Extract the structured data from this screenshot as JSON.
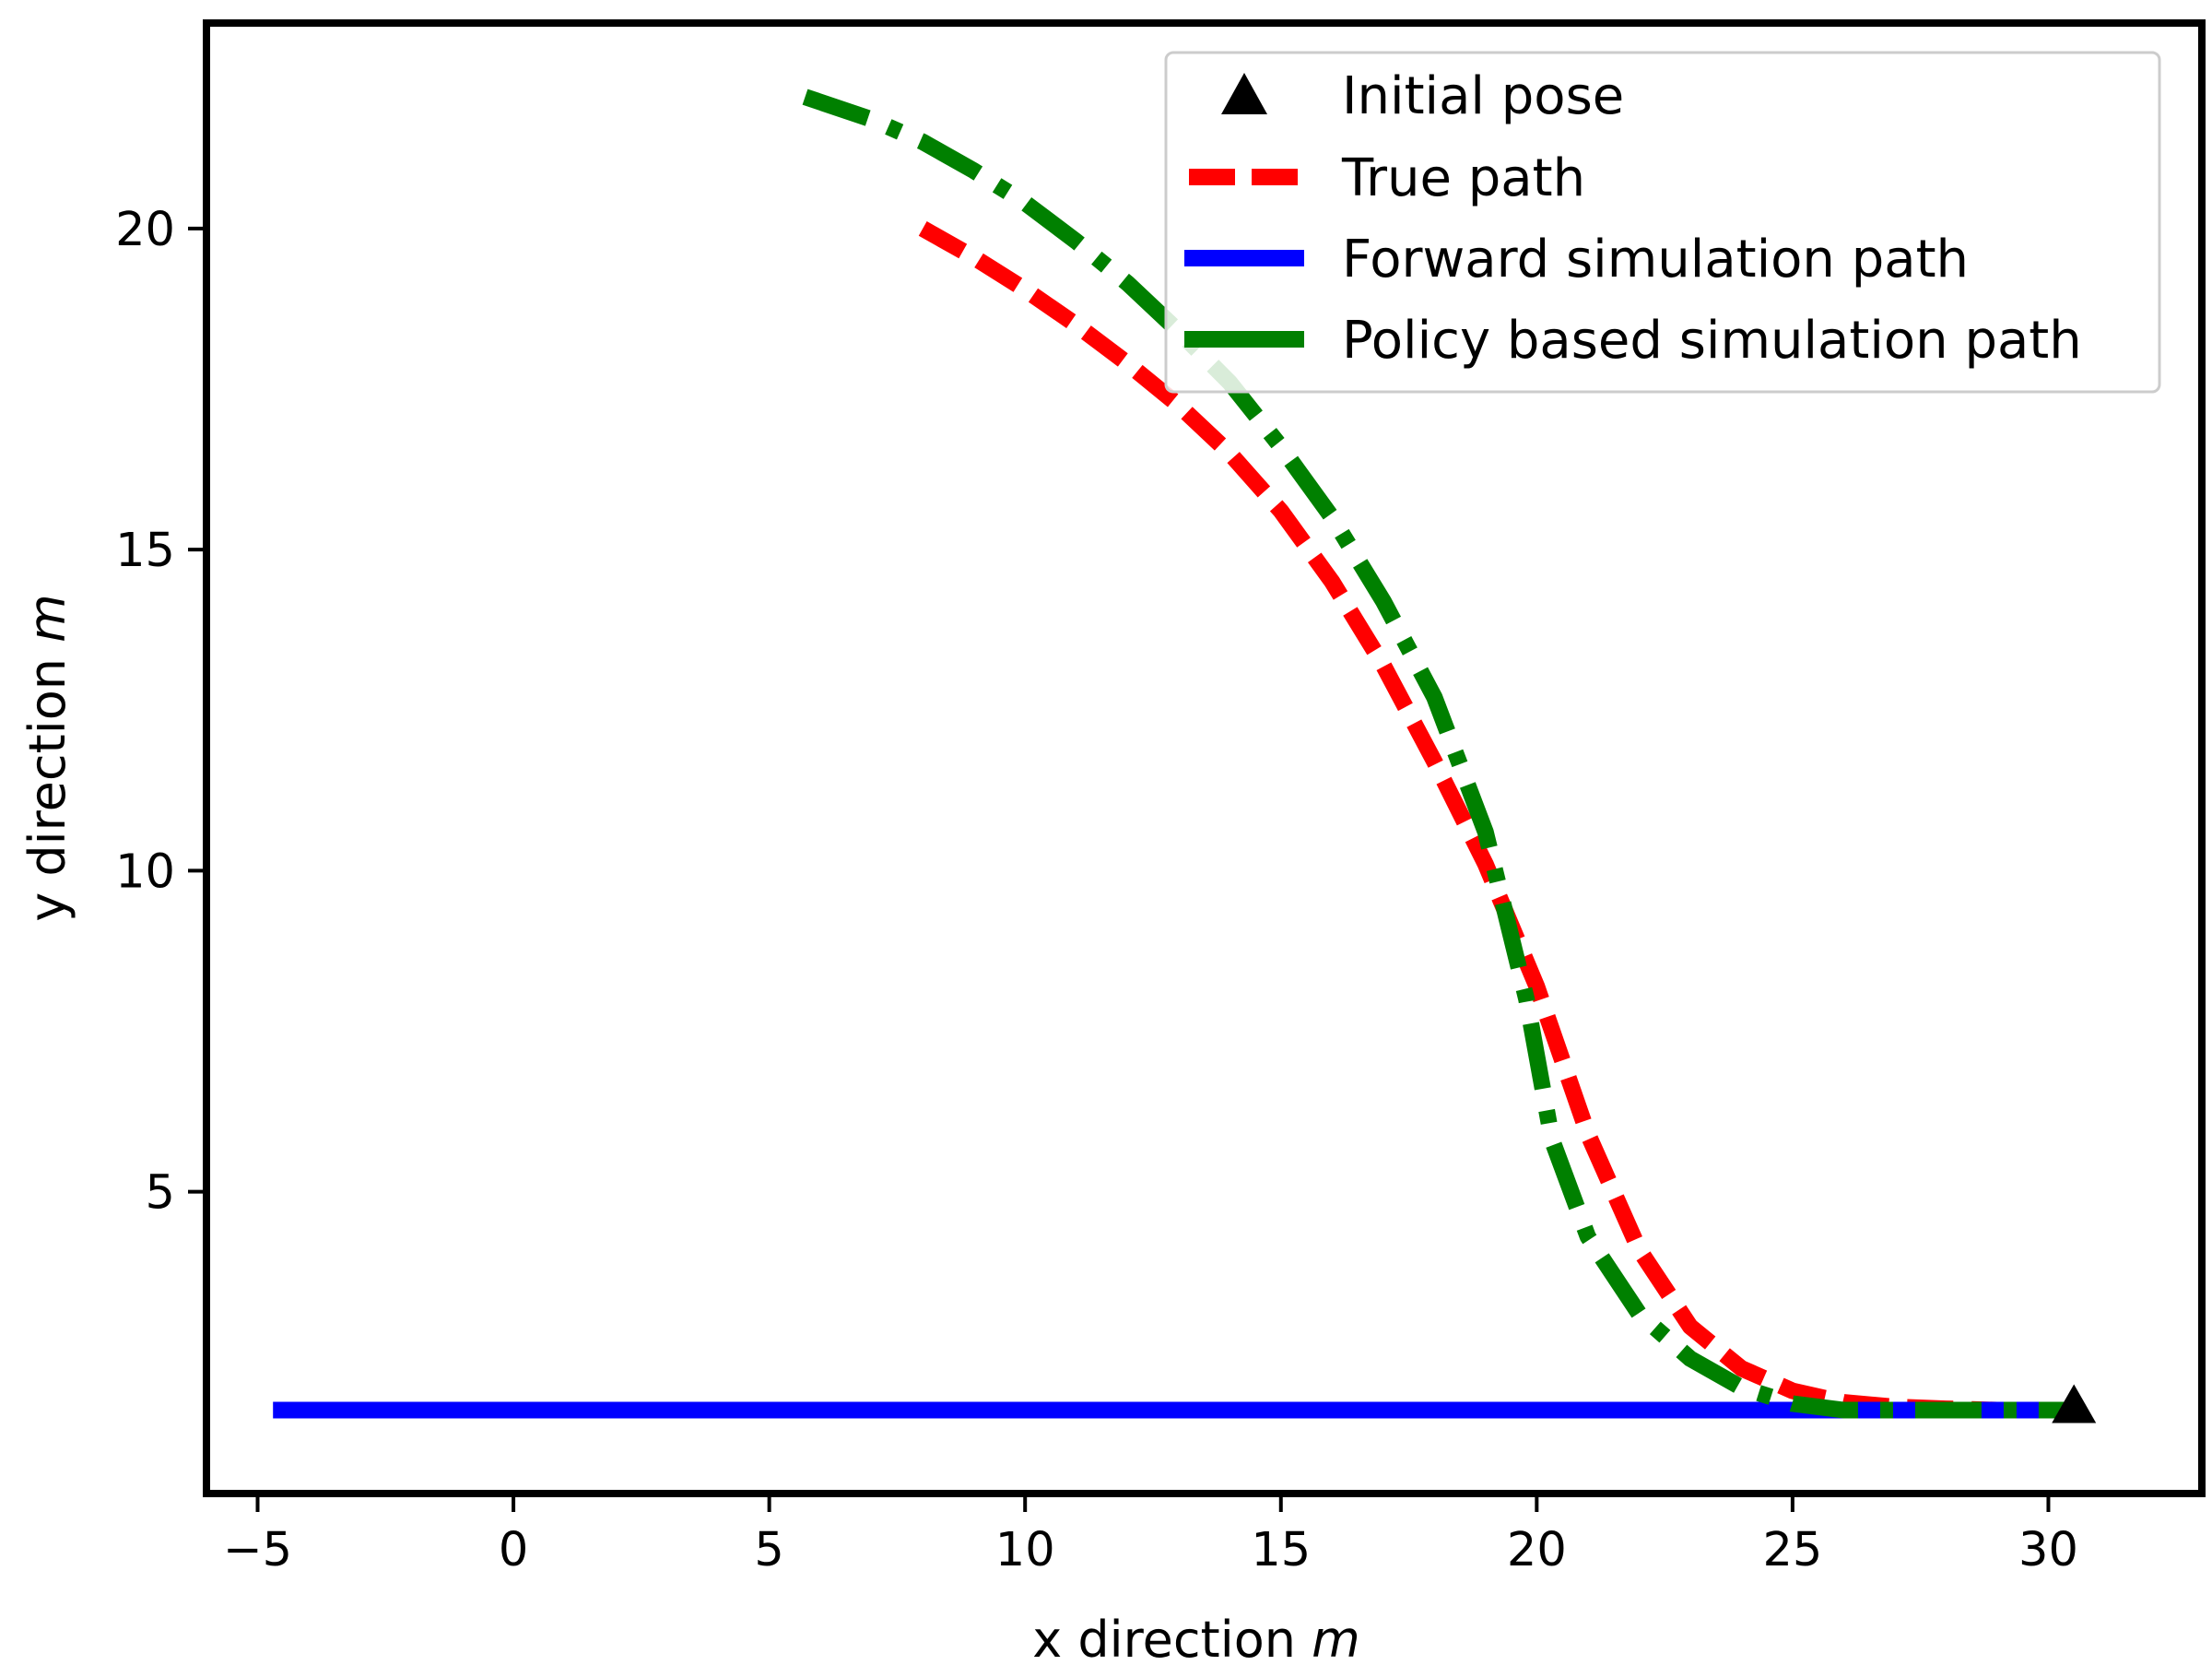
{
  "chart_data": {
    "type": "line",
    "title": "",
    "xlabel": "x direction",
    "xlabel_unit": "m",
    "ylabel": "y direction",
    "ylabel_unit": "m",
    "xlim": [
      -6,
      33
    ],
    "ylim": [
      0.3,
      23.2
    ],
    "x_ticks": [
      -5,
      0,
      5,
      10,
      15,
      20,
      25,
      30
    ],
    "x_tick_labels": [
      "−5",
      "0",
      "5",
      "10",
      "15",
      "20",
      "25",
      "30"
    ],
    "y_ticks": [
      5,
      10,
      15,
      20
    ],
    "y_tick_labels": [
      "5",
      "10",
      "15",
      "20"
    ],
    "grid": false,
    "legend_position": "top-right",
    "initial_pose": {
      "name": "Initial pose",
      "x": 30.5,
      "y": 1.6,
      "color": "#000000"
    },
    "series": [
      {
        "name": "True path",
        "style": "dashed",
        "color": "#ff0000",
        "points": [
          [
            8,
            20
          ],
          [
            9,
            19.55
          ],
          [
            10,
            19.05
          ],
          [
            11,
            18.5
          ],
          [
            12,
            17.9
          ],
          [
            13,
            17.25
          ],
          [
            14,
            16.5
          ],
          [
            15,
            15.6
          ],
          [
            16,
            14.5
          ],
          [
            17,
            13.2
          ],
          [
            18,
            11.7
          ],
          [
            19,
            10.1
          ],
          [
            20,
            8.2
          ],
          [
            21,
            5.9
          ],
          [
            22,
            4.1
          ],
          [
            23,
            2.9
          ],
          [
            24,
            2.25
          ],
          [
            25,
            1.9
          ],
          [
            26,
            1.72
          ],
          [
            27,
            1.65
          ],
          [
            28,
            1.62
          ],
          [
            29,
            1.6
          ],
          [
            30.5,
            1.6
          ]
        ]
      },
      {
        "name": "Forward simulation path",
        "style": "solid",
        "color": "#0000ff",
        "points": [
          [
            -4.7,
            1.6
          ],
          [
            30.5,
            1.6
          ]
        ]
      },
      {
        "name": "Policy based simulation path",
        "style": "dashdot",
        "color": "#008000",
        "points": [
          [
            5.7,
            22.05
          ],
          [
            7,
            21.7
          ],
          [
            8,
            21.35
          ],
          [
            9,
            20.9
          ],
          [
            10,
            20.4
          ],
          [
            11,
            19.8
          ],
          [
            12,
            19.15
          ],
          [
            13,
            18.4
          ],
          [
            14,
            17.6
          ],
          [
            15,
            16.6
          ],
          [
            16,
            15.5
          ],
          [
            17,
            14.2
          ],
          [
            18,
            12.7
          ],
          [
            19,
            10.6
          ],
          [
            19.8,
            8.0
          ],
          [
            20.3,
            5.8
          ],
          [
            21,
            4.3
          ],
          [
            22,
            3.1
          ],
          [
            23,
            2.4
          ],
          [
            24,
            1.95
          ],
          [
            25,
            1.7
          ],
          [
            26,
            1.6
          ],
          [
            27,
            1.6
          ],
          [
            30.5,
            1.6
          ]
        ]
      }
    ]
  }
}
